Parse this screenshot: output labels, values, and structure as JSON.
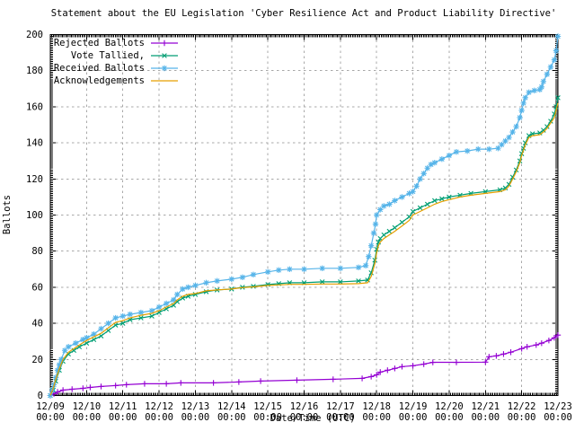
{
  "chart_data": {
    "type": "line",
    "title": "Statement about the EU Legislation 'Cyber Resilience Act and Product Liability Directive'",
    "xlabel": "Date/Time (UTC)",
    "ylabel": "Ballots",
    "ylim": [
      0,
      200
    ],
    "y_ticks": [
      0,
      20,
      40,
      60,
      80,
      100,
      120,
      140,
      160,
      180,
      200
    ],
    "x_tick_dates": [
      "12/09",
      "12/10",
      "12/11",
      "12/12",
      "12/13",
      "12/14",
      "12/15",
      "12/16",
      "12/17",
      "12/18",
      "12/19",
      "12/20",
      "12/21",
      "12/22",
      "12/23"
    ],
    "x_tick_time": "00:00",
    "grid": true,
    "grid_color": "#a8a8a8",
    "axis_color": "#000000",
    "background_color": "#ffffff",
    "legend_position": "top-left",
    "series": [
      {
        "name": "Rejected Ballots",
        "color": "#9400D3",
        "marker": "plus",
        "points": [
          [
            0,
            0
          ],
          [
            0.1,
            1
          ],
          [
            0.2,
            2
          ],
          [
            0.35,
            3
          ],
          [
            0.6,
            3.5
          ],
          [
            0.9,
            4
          ],
          [
            1.1,
            4.5
          ],
          [
            1.4,
            5
          ],
          [
            1.8,
            5.5
          ],
          [
            2.1,
            6
          ],
          [
            2.6,
            6.5
          ],
          [
            3.2,
            6.5
          ],
          [
            3.6,
            7
          ],
          [
            4.5,
            7
          ],
          [
            5.2,
            7.5
          ],
          [
            5.8,
            8
          ],
          [
            6.8,
            8.5
          ],
          [
            7.8,
            9
          ],
          [
            8.6,
            9.5
          ],
          [
            8.85,
            10.5
          ],
          [
            9.0,
            11.5
          ],
          [
            9.1,
            13
          ],
          [
            9.3,
            14
          ],
          [
            9.5,
            15
          ],
          [
            9.7,
            16
          ],
          [
            10.0,
            16.5
          ],
          [
            10.3,
            17.4
          ],
          [
            10.55,
            18.4
          ],
          [
            11.2,
            18.4
          ],
          [
            12.0,
            18.5
          ],
          [
            12.1,
            21.5
          ],
          [
            12.3,
            22
          ],
          [
            12.5,
            23
          ],
          [
            12.7,
            24
          ],
          [
            13.0,
            26
          ],
          [
            13.15,
            27
          ],
          [
            13.4,
            28
          ],
          [
            13.55,
            29
          ],
          [
            13.75,
            30.5
          ],
          [
            13.9,
            32
          ],
          [
            14.0,
            33.5
          ]
        ]
      },
      {
        "name": "Vote Tallied,",
        "color": "#009E73",
        "marker": "cross",
        "points": [
          [
            0,
            0
          ],
          [
            0.08,
            3
          ],
          [
            0.15,
            8
          ],
          [
            0.25,
            14
          ],
          [
            0.35,
            19
          ],
          [
            0.5,
            23
          ],
          [
            0.65,
            25
          ],
          [
            0.8,
            27
          ],
          [
            1.0,
            29
          ],
          [
            1.2,
            31
          ],
          [
            1.4,
            33
          ],
          [
            1.6,
            36
          ],
          [
            1.8,
            39
          ],
          [
            2.0,
            40
          ],
          [
            2.2,
            42
          ],
          [
            2.5,
            43
          ],
          [
            2.8,
            44
          ],
          [
            3.0,
            46
          ],
          [
            3.2,
            48
          ],
          [
            3.4,
            50
          ],
          [
            3.5,
            52
          ],
          [
            3.65,
            54
          ],
          [
            3.8,
            55
          ],
          [
            4.0,
            56
          ],
          [
            4.3,
            57.5
          ],
          [
            4.6,
            58.5
          ],
          [
            5.0,
            59
          ],
          [
            5.3,
            60
          ],
          [
            5.6,
            60.5
          ],
          [
            6.0,
            61.5
          ],
          [
            6.3,
            62
          ],
          [
            6.6,
            62.5
          ],
          [
            7.0,
            62.5
          ],
          [
            7.5,
            63
          ],
          [
            8.0,
            63
          ],
          [
            8.5,
            63.5
          ],
          [
            8.75,
            64
          ],
          [
            8.85,
            68
          ],
          [
            8.95,
            75
          ],
          [
            9.0,
            81
          ],
          [
            9.05,
            85
          ],
          [
            9.1,
            87
          ],
          [
            9.2,
            89
          ],
          [
            9.35,
            91
          ],
          [
            9.5,
            93
          ],
          [
            9.7,
            96
          ],
          [
            9.9,
            99
          ],
          [
            10.0,
            102
          ],
          [
            10.2,
            104
          ],
          [
            10.4,
            106
          ],
          [
            10.6,
            108
          ],
          [
            10.8,
            109
          ],
          [
            11.0,
            110
          ],
          [
            11.3,
            111
          ],
          [
            11.6,
            112
          ],
          [
            12.0,
            113
          ],
          [
            12.4,
            114
          ],
          [
            12.55,
            115
          ],
          [
            12.65,
            117
          ],
          [
            12.75,
            121
          ],
          [
            12.85,
            125
          ],
          [
            12.95,
            130
          ],
          [
            13.0,
            134
          ],
          [
            13.05,
            137
          ],
          [
            13.1,
            140
          ],
          [
            13.2,
            144
          ],
          [
            13.3,
            145
          ],
          [
            13.5,
            145.5
          ],
          [
            13.6,
            147
          ],
          [
            13.7,
            149
          ],
          [
            13.8,
            152
          ],
          [
            13.9,
            156
          ],
          [
            13.95,
            160
          ],
          [
            14.0,
            165
          ]
        ]
      },
      {
        "name": "Received Ballots",
        "color": "#56B4E9",
        "marker": "asterisk",
        "points": [
          [
            0,
            0
          ],
          [
            0.05,
            3
          ],
          [
            0.1,
            6
          ],
          [
            0.15,
            10
          ],
          [
            0.2,
            14
          ],
          [
            0.25,
            17
          ],
          [
            0.3,
            20
          ],
          [
            0.4,
            25
          ],
          [
            0.5,
            27
          ],
          [
            0.7,
            29
          ],
          [
            0.9,
            31
          ],
          [
            1.0,
            32
          ],
          [
            1.2,
            34
          ],
          [
            1.4,
            37
          ],
          [
            1.6,
            40
          ],
          [
            1.8,
            43
          ],
          [
            2.0,
            44
          ],
          [
            2.2,
            45
          ],
          [
            2.5,
            46
          ],
          [
            2.8,
            47
          ],
          [
            3.0,
            49
          ],
          [
            3.2,
            51
          ],
          [
            3.4,
            53
          ],
          [
            3.5,
            56
          ],
          [
            3.65,
            59
          ],
          [
            3.8,
            60
          ],
          [
            4.0,
            61
          ],
          [
            4.3,
            62.5
          ],
          [
            4.6,
            63.5
          ],
          [
            5.0,
            64.5
          ],
          [
            5.3,
            65.5
          ],
          [
            5.6,
            67
          ],
          [
            6.0,
            68.5
          ],
          [
            6.3,
            69.5
          ],
          [
            6.6,
            70
          ],
          [
            7.0,
            70
          ],
          [
            7.5,
            70.5
          ],
          [
            8.0,
            70.5
          ],
          [
            8.5,
            71
          ],
          [
            8.7,
            72
          ],
          [
            8.78,
            77
          ],
          [
            8.85,
            83
          ],
          [
            8.92,
            90
          ],
          [
            8.97,
            95
          ],
          [
            9.0,
            100
          ],
          [
            9.1,
            103
          ],
          [
            9.2,
            105
          ],
          [
            9.35,
            106
          ],
          [
            9.5,
            108
          ],
          [
            9.7,
            110
          ],
          [
            9.9,
            112
          ],
          [
            10.0,
            113
          ],
          [
            10.1,
            116
          ],
          [
            10.2,
            120
          ],
          [
            10.3,
            123
          ],
          [
            10.4,
            126
          ],
          [
            10.5,
            128
          ],
          [
            10.6,
            129
          ],
          [
            10.8,
            131
          ],
          [
            11.0,
            133
          ],
          [
            11.2,
            135
          ],
          [
            11.5,
            135.5
          ],
          [
            11.8,
            136.5
          ],
          [
            12.1,
            136.5
          ],
          [
            12.35,
            137
          ],
          [
            12.45,
            139
          ],
          [
            12.55,
            141
          ],
          [
            12.65,
            143
          ],
          [
            12.75,
            146
          ],
          [
            12.85,
            149
          ],
          [
            12.95,
            154
          ],
          [
            13.0,
            158
          ],
          [
            13.05,
            162
          ],
          [
            13.1,
            165
          ],
          [
            13.2,
            168
          ],
          [
            13.35,
            169
          ],
          [
            13.5,
            169.5
          ],
          [
            13.55,
            171
          ],
          [
            13.6,
            174
          ],
          [
            13.7,
            178
          ],
          [
            13.8,
            182
          ],
          [
            13.9,
            186
          ],
          [
            13.95,
            191
          ],
          [
            14.0,
            199
          ]
        ]
      },
      {
        "name": "Acknowledgements",
        "color": "#E69F00",
        "marker": "none",
        "points": [
          [
            0,
            0
          ],
          [
            0.08,
            4
          ],
          [
            0.15,
            9
          ],
          [
            0.25,
            15
          ],
          [
            0.35,
            20
          ],
          [
            0.5,
            24
          ],
          [
            0.65,
            26
          ],
          [
            0.8,
            28
          ],
          [
            1.0,
            30.5
          ],
          [
            1.2,
            32.5
          ],
          [
            1.4,
            34.5
          ],
          [
            1.6,
            37.5
          ],
          [
            1.8,
            40.5
          ],
          [
            2.0,
            41.5
          ],
          [
            2.2,
            43
          ],
          [
            2.5,
            44.5
          ],
          [
            2.8,
            45.5
          ],
          [
            3.0,
            47
          ],
          [
            3.2,
            49
          ],
          [
            3.4,
            51
          ],
          [
            3.5,
            53
          ],
          [
            3.65,
            55
          ],
          [
            3.8,
            56
          ],
          [
            4.0,
            56.5
          ],
          [
            4.3,
            58
          ],
          [
            4.6,
            58.5
          ],
          [
            5.0,
            59
          ],
          [
            5.3,
            59.8
          ],
          [
            5.6,
            60.2
          ],
          [
            6.0,
            61
          ],
          [
            6.3,
            61.3
          ],
          [
            6.6,
            61.6
          ],
          [
            7.0,
            61.6
          ],
          [
            7.5,
            61.8
          ],
          [
            8.0,
            61.8
          ],
          [
            8.5,
            62
          ],
          [
            8.75,
            62.5
          ],
          [
            8.85,
            66
          ],
          [
            8.95,
            73
          ],
          [
            9.0,
            79
          ],
          [
            9.05,
            83
          ],
          [
            9.1,
            85
          ],
          [
            9.2,
            87
          ],
          [
            9.35,
            89
          ],
          [
            9.5,
            91
          ],
          [
            9.7,
            94
          ],
          [
            9.9,
            97
          ],
          [
            10.0,
            100
          ],
          [
            10.2,
            102
          ],
          [
            10.4,
            104
          ],
          [
            10.6,
            106
          ],
          [
            10.8,
            107.5
          ],
          [
            11.0,
            108.5
          ],
          [
            11.3,
            110
          ],
          [
            11.6,
            111
          ],
          [
            12.0,
            112
          ],
          [
            12.4,
            113
          ],
          [
            12.55,
            114
          ],
          [
            12.65,
            116
          ],
          [
            12.75,
            120
          ],
          [
            12.85,
            124
          ],
          [
            12.95,
            129
          ],
          [
            13.0,
            133
          ],
          [
            13.05,
            136
          ],
          [
            13.1,
            139
          ],
          [
            13.2,
            143
          ],
          [
            13.3,
            144
          ],
          [
            13.5,
            144.5
          ],
          [
            13.6,
            146
          ],
          [
            13.7,
            148
          ],
          [
            13.8,
            151
          ],
          [
            13.9,
            154
          ],
          [
            13.95,
            158
          ],
          [
            14.0,
            162
          ]
        ]
      }
    ]
  }
}
